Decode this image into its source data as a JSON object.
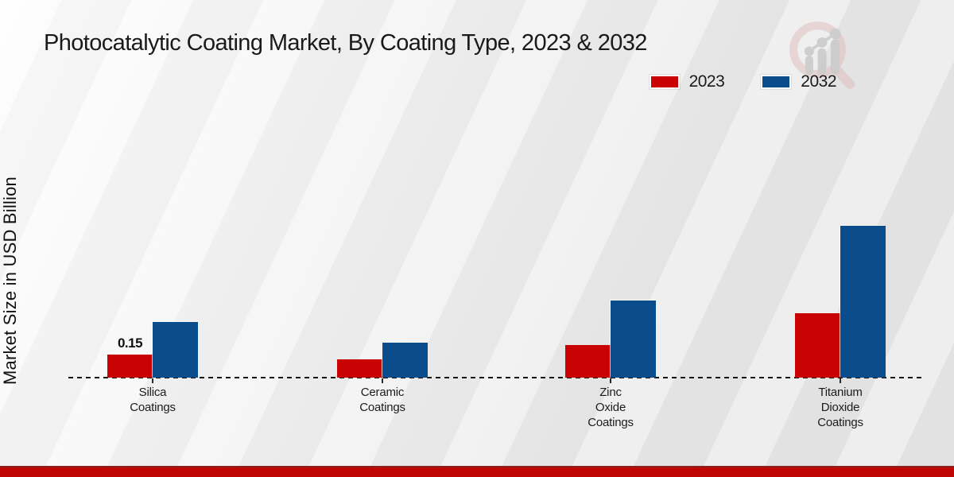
{
  "header": {
    "title": "Photocatalytic Coating Market, By Coating Type, 2023 & 2032"
  },
  "watermark_icon": "growth-chart-magnifier-watermark",
  "colors": {
    "series_2023": "#c90303",
    "series_2032": "#0b4d8c",
    "footer_bar": "#c00505",
    "text": "#1a1a1a"
  },
  "chart_data": {
    "type": "bar",
    "title": "Photocatalytic Coating Market, By Coating Type, 2023 & 2032",
    "xlabel": "",
    "ylabel": "Market Size in USD Billion",
    "categories": [
      "Silica Coatings",
      "Ceramic Coatings",
      "Zinc Oxide Coatings",
      "Titanium Dioxide Coatings"
    ],
    "series": [
      {
        "name": "2023",
        "color": "#c90303",
        "values": [
          0.15,
          0.12,
          0.21,
          0.42
        ]
      },
      {
        "name": "2032",
        "color": "#0b4d8c",
        "values": [
          0.36,
          0.23,
          0.5,
          0.99
        ]
      }
    ],
    "data_labels": [
      {
        "category_index": 0,
        "series_index": 0,
        "text": "0.15"
      }
    ],
    "ylim": [
      0,
      1.1
    ],
    "grid": false,
    "y_axis_visible": false,
    "baseline_style": "dashed",
    "legend_position": "top-right"
  }
}
